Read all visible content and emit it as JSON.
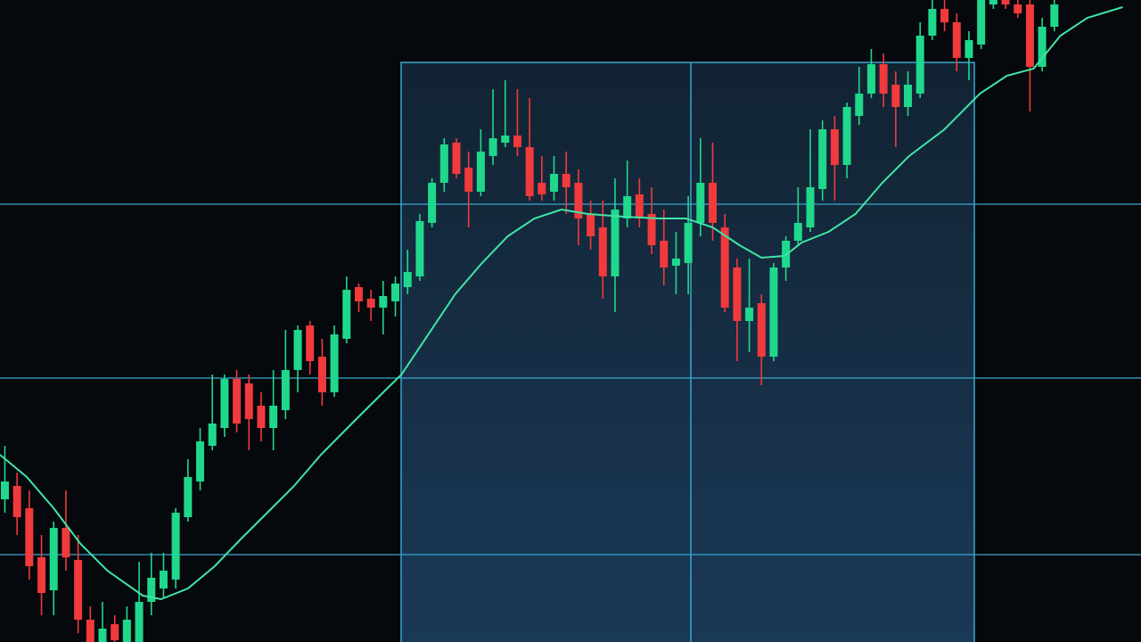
{
  "chart_data": {
    "type": "candlestick",
    "xlim": [
      -0.4,
      93.1
    ],
    "ylim": [
      0,
      720
    ],
    "up_color": "#1fd88c",
    "down_color": "#f03a3c",
    "x": [
      0,
      1,
      2,
      3,
      4,
      5,
      6,
      7,
      8,
      9,
      10,
      11,
      12,
      13,
      14,
      15,
      16,
      17,
      18,
      19,
      20,
      21,
      22,
      23,
      24,
      25,
      26,
      27,
      28,
      29,
      30,
      31,
      32,
      33,
      34,
      35,
      36,
      37,
      38,
      39,
      40,
      41,
      42,
      43,
      44,
      45,
      46,
      47,
      48,
      49,
      50,
      51,
      52,
      53,
      54,
      55,
      56,
      57,
      58,
      59,
      60,
      61,
      62,
      63,
      64,
      65,
      66,
      67,
      68,
      69,
      70,
      71,
      72,
      73,
      74,
      75,
      76,
      77,
      78,
      79,
      80,
      81,
      82,
      83,
      84,
      85,
      86
    ],
    "open": [
      160,
      175,
      150,
      95,
      58,
      128,
      92,
      25,
      0,
      20,
      0,
      0,
      45,
      60,
      70,
      140,
      180,
      220,
      240,
      295,
      290,
      265,
      240,
      260,
      305,
      355,
      320,
      280,
      340,
      398,
      385,
      375,
      382,
      398,
      410,
      470,
      515,
      560,
      532,
      505,
      545,
      560,
      568,
      555,
      515,
      505,
      525,
      515,
      480,
      465,
      410,
      475,
      502,
      480,
      450,
      422,
      425,
      470,
      515,
      465,
      420,
      360,
      380,
      320,
      420,
      450,
      465,
      508,
      575,
      535,
      590,
      615,
      648,
      625,
      600,
      615,
      680,
      710,
      695,
      655,
      670,
      715,
      720,
      715,
      715,
      645,
      690
    ],
    "high": [
      220,
      190,
      170,
      120,
      135,
      170,
      120,
      40,
      45,
      30,
      40,
      90,
      100,
      100,
      150,
      205,
      240,
      300,
      300,
      305,
      300,
      280,
      305,
      350,
      355,
      360,
      340,
      355,
      410,
      402,
      395,
      405,
      410,
      440,
      480,
      520,
      565,
      565,
      550,
      575,
      620,
      630,
      620,
      610,
      545,
      545,
      550,
      530,
      495,
      495,
      520,
      540,
      520,
      510,
      485,
      460,
      500,
      565,
      560,
      480,
      430,
      430,
      390,
      425,
      455,
      510,
      575,
      585,
      590,
      605,
      645,
      665,
      660,
      640,
      640,
      695,
      720,
      720,
      705,
      685,
      720,
      720,
      720,
      720,
      720,
      700,
      720
    ],
    "low": [
      145,
      120,
      70,
      30,
      30,
      80,
      10,
      0,
      0,
      0,
      0,
      0,
      30,
      50,
      60,
      135,
      170,
      215,
      230,
      235,
      215,
      225,
      215,
      250,
      280,
      300,
      265,
      275,
      335,
      370,
      360,
      345,
      365,
      390,
      405,
      465,
      505,
      520,
      465,
      500,
      535,
      555,
      545,
      495,
      495,
      495,
      480,
      445,
      440,
      385,
      370,
      465,
      465,
      435,
      400,
      390,
      390,
      455,
      450,
      370,
      315,
      325,
      288,
      315,
      405,
      445,
      460,
      495,
      495,
      520,
      580,
      610,
      600,
      555,
      590,
      610,
      675,
      685,
      640,
      630,
      665,
      710,
      710,
      700,
      595,
      640,
      685
    ],
    "close": [
      180,
      140,
      85,
      55,
      128,
      95,
      25,
      0,
      15,
      2,
      25,
      45,
      72,
      80,
      145,
      185,
      225,
      245,
      295,
      245,
      250,
      240,
      265,
      305,
      350,
      315,
      280,
      345,
      395,
      382,
      375,
      388,
      402,
      415,
      472,
      515,
      558,
      525,
      505,
      550,
      565,
      568,
      555,
      500,
      502,
      525,
      510,
      475,
      455,
      410,
      485,
      500,
      475,
      445,
      420,
      430,
      470,
      515,
      470,
      375,
      360,
      375,
      320,
      420,
      450,
      470,
      510,
      575,
      535,
      600,
      615,
      648,
      615,
      600,
      625,
      680,
      710,
      695,
      655,
      675,
      720,
      720,
      715,
      705,
      645,
      690,
      715
    ],
    "moving_average": {
      "color": "#3fe6a6",
      "x": [
        -0.4,
        1.8,
        4.0,
        6.2,
        8.4,
        11.3,
        12.8,
        15.0,
        17.2,
        19.3,
        21.5,
        23.7,
        25.9,
        28.8,
        31.0,
        32.5,
        34.7,
        36.9,
        39.1,
        41.2,
        43.4,
        45.6,
        47.8,
        50.7,
        53.6,
        55.8,
        58.0,
        60.2,
        62.0,
        63.9,
        65.3,
        67.5,
        69.7,
        71.9,
        74.1,
        77.0,
        79.9,
        82.1,
        84.3,
        86.5,
        88.7,
        91.6
      ],
      "values": [
        210,
        185,
        150,
        110,
        80,
        52,
        48,
        60,
        85,
        115,
        145,
        175,
        210,
        250,
        280,
        300,
        345,
        390,
        425,
        455,
        475,
        485,
        480,
        477,
        475,
        475,
        465,
        445,
        431,
        433,
        448,
        460,
        480,
        515,
        545,
        575,
        615,
        635,
        643,
        680,
        700,
        712
      ]
    }
  }
}
